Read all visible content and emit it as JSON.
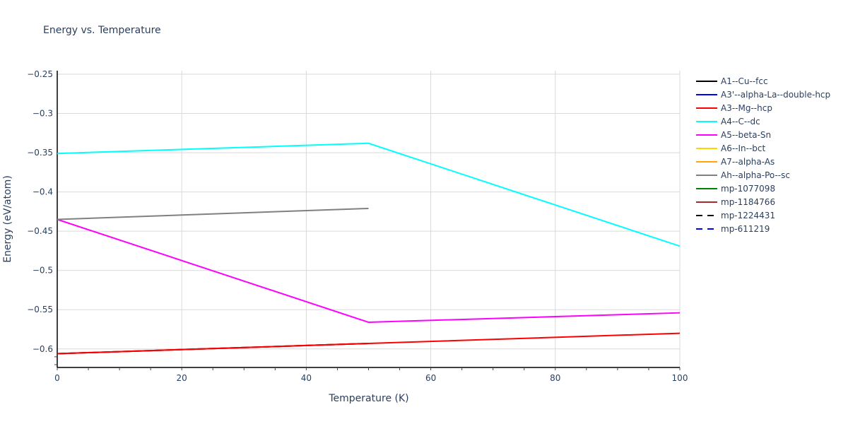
{
  "chart": {
    "title": "Energy vs. Temperature",
    "xlabel": "Temperature (K)",
    "ylabel": "Energy (eV/atom)",
    "x_ticks": [
      "0",
      "20",
      "40",
      "60",
      "80",
      "100"
    ],
    "y_ticks": [
      "−0.25",
      "−0.3",
      "−0.35",
      "−0.4",
      "−0.45",
      "−0.5",
      "−0.55",
      "−0.6"
    ]
  },
  "legend": [
    {
      "label": "A1--Cu--fcc",
      "color": "#000000",
      "dash": false
    },
    {
      "label": "A3'--alpha-La--double-hcp",
      "color": "#0000ff",
      "dash": false
    },
    {
      "label": "A3--Mg--hcp",
      "color": "#ff0000",
      "dash": false
    },
    {
      "label": "A4--C--dc",
      "color": "#00ffff",
      "dash": false
    },
    {
      "label": "A5--beta-Sn",
      "color": "#ff00ff",
      "dash": false
    },
    {
      "label": "A6--In--bct",
      "color": "#ffd700",
      "dash": false
    },
    {
      "label": "A7--alpha-As",
      "color": "#ffa500",
      "dash": false
    },
    {
      "label": "Ah--alpha-Po--sc",
      "color": "#808080",
      "dash": false
    },
    {
      "label": "mp-1077098",
      "color": "#008000",
      "dash": false
    },
    {
      "label": "mp-1184766",
      "color": "#a52a2a",
      "dash": false
    },
    {
      "label": "mp-1224431",
      "color": "#000000",
      "dash": true
    },
    {
      "label": "mp-611219",
      "color": "#0000ff",
      "dash": true
    }
  ],
  "chart_data": {
    "type": "line",
    "title": "Energy vs. Temperature",
    "xlabel": "Temperature (K)",
    "ylabel": "Energy (eV/atom)",
    "xlim": [
      0,
      100
    ],
    "ylim": [
      -0.6236,
      -0.2455
    ],
    "grid": true,
    "legend_position": "right",
    "x_ticks": [
      0,
      20,
      40,
      60,
      80,
      100
    ],
    "y_ticks": [
      -0.25,
      -0.3,
      -0.35,
      -0.4,
      -0.45,
      -0.5,
      -0.55,
      -0.6
    ],
    "series": [
      {
        "name": "A1--Cu--fcc",
        "color": "#000000",
        "x": [
          0,
          50
        ],
        "y": [
          -0.606,
          -0.593
        ]
      },
      {
        "name": "mp-1184766",
        "color": "#a52a2a",
        "x": [
          0,
          50
        ],
        "y": [
          -0.606,
          -0.593
        ]
      },
      {
        "name": "A3--Mg--hcp",
        "color": "#ff0000",
        "x": [
          0,
          50,
          100
        ],
        "y": [
          -0.606,
          -0.593,
          -0.58
        ]
      },
      {
        "name": "A4--C--dc",
        "color": "#00ffff",
        "x": [
          0,
          50,
          100
        ],
        "y": [
          -0.351,
          -0.338,
          -0.469
        ]
      },
      {
        "name": "A5--beta-Sn",
        "color": "#ff00ff",
        "x": [
          0,
          50,
          100
        ],
        "y": [
          -0.435,
          -0.566,
          -0.554
        ]
      },
      {
        "name": "Ah--alpha-Po--sc",
        "color": "#808080",
        "x": [
          0,
          50
        ],
        "y": [
          -0.435,
          -0.421
        ]
      }
    ]
  }
}
